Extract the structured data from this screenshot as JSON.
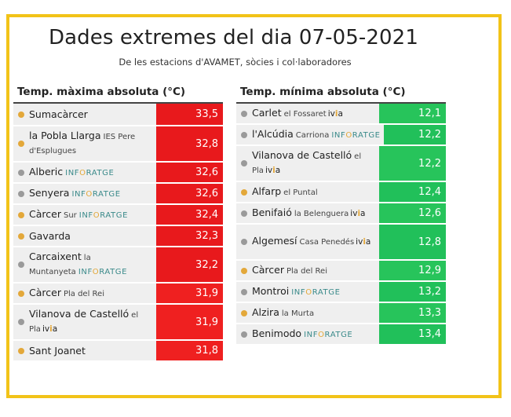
{
  "title": "Dades extremes del dia 07-05-2021",
  "subtitle": "De les estacions d'AVAMET, sòcies i col·laboradores",
  "colors": {
    "border": "#f2c318",
    "hot": "#e8191c",
    "cold": "#21c05a",
    "dot_orange": "#e3a83a",
    "dot_gray": "#9a9a9a"
  },
  "max_table": {
    "header": "Temp. màxima absoluta (°C)",
    "rows": [
      {
        "name": "Sumacàrcer",
        "loc": "",
        "brand": "",
        "ivia": false,
        "dot": "orange",
        "value": "33,5"
      },
      {
        "name": "la Pobla Llarga",
        "loc": "IES Pere d'Esplugues",
        "brand": "",
        "ivia": false,
        "dot": "orange",
        "value": "32,8"
      },
      {
        "name": "Alberic",
        "loc": "",
        "brand": "INFORATGE",
        "ivia": false,
        "dot": "gray",
        "value": "32,6"
      },
      {
        "name": "Senyera",
        "loc": "",
        "brand": "INFORATGE",
        "ivia": false,
        "dot": "gray",
        "value": "32,6"
      },
      {
        "name": "Càrcer",
        "loc": "Sur",
        "brand": "INFORATGE",
        "ivia": false,
        "dot": "orange",
        "value": "32,4"
      },
      {
        "name": "Gavarda",
        "loc": "",
        "brand": "",
        "ivia": false,
        "dot": "orange",
        "value": "32,3"
      },
      {
        "name": "Carcaixent",
        "loc": "la Muntanyeta",
        "brand": "INFORATGE",
        "ivia": false,
        "dot": "gray",
        "value": "32,2"
      },
      {
        "name": "Càrcer",
        "loc": "Pla del Rei",
        "brand": "",
        "ivia": false,
        "dot": "orange",
        "value": "31,9"
      },
      {
        "name": "Vilanova de Castelló",
        "loc": "el Pla",
        "brand": "",
        "ivia": true,
        "dot": "gray",
        "value": "31,9"
      },
      {
        "name": "Sant Joanet",
        "loc": "",
        "brand": "",
        "ivia": false,
        "dot": "orange",
        "value": "31,8"
      }
    ]
  },
  "min_table": {
    "header": "Temp. mínima absoluta (°C)",
    "rows": [
      {
        "name": "Carlet",
        "loc": "el Fossaret",
        "brand": "",
        "ivia": true,
        "dot": "gray",
        "value": "12,1"
      },
      {
        "name": "l'Alcúdia",
        "loc": "Carriona",
        "brand": "INFORATGE",
        "ivia": false,
        "dot": "gray",
        "value": "12,2"
      },
      {
        "name": "Vilanova de Castelló",
        "loc": "el Pla",
        "brand": "",
        "ivia": true,
        "dot": "gray",
        "value": "12,2"
      },
      {
        "name": "Alfarp",
        "loc": "el Puntal",
        "brand": "",
        "ivia": false,
        "dot": "orange",
        "value": "12,4"
      },
      {
        "name": "Benifaió",
        "loc": "la Belenguera",
        "brand": "",
        "ivia": true,
        "dot": "gray",
        "value": "12,6"
      },
      {
        "name": "Algemesí",
        "loc": "Casa Penedés",
        "brand": "",
        "ivia": true,
        "dot": "gray",
        "value": "12,8"
      },
      {
        "name": "Càrcer",
        "loc": "Pla del Rei",
        "brand": "",
        "ivia": false,
        "dot": "orange",
        "value": "12,9"
      },
      {
        "name": "Montroi",
        "loc": "",
        "brand": "INFORATGE",
        "ivia": false,
        "dot": "gray",
        "value": "13,2"
      },
      {
        "name": "Alzira",
        "loc": "la Murta",
        "brand": "",
        "ivia": false,
        "dot": "orange",
        "value": "13,3"
      },
      {
        "name": "Benimodo",
        "loc": "",
        "brand": "INFORATGE",
        "ivia": false,
        "dot": "gray",
        "value": "13,4"
      }
    ]
  }
}
